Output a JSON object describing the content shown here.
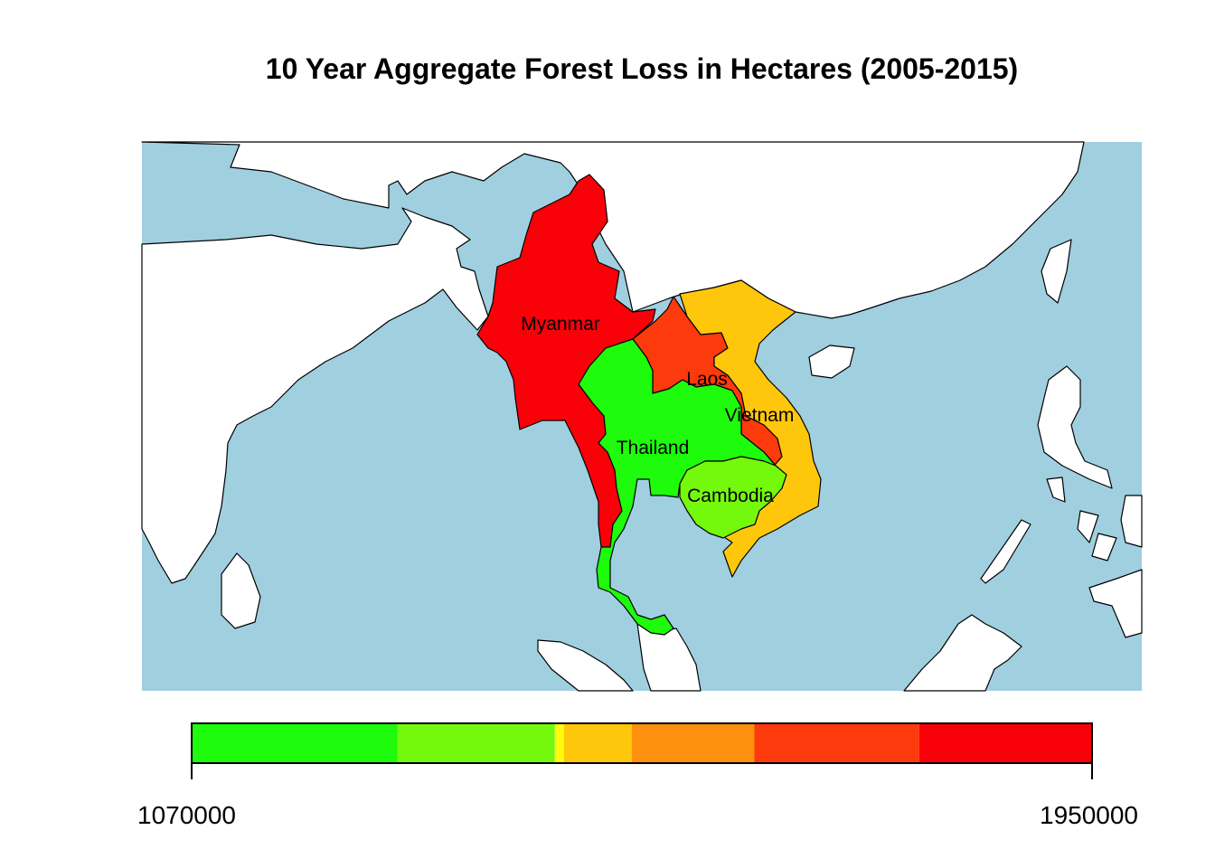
{
  "title": "10 Year Aggregate Forest Loss in Hectares (2005-2015)",
  "colors": {
    "sea": "#a0cfe0",
    "land": "#ffffff",
    "myanmar": "#fa0008",
    "laos": "#fd3a0c",
    "vietnam": "#fec70c",
    "thailand": "#1efb0c",
    "cambodia": "#74f90c"
  },
  "countries": [
    {
      "name": "Myanmar",
      "label": "Myanmar",
      "color_key": "myanmar"
    },
    {
      "name": "Laos",
      "label": "Laos",
      "color_key": "laos"
    },
    {
      "name": "Vietnam",
      "label": "Vietnam",
      "color_key": "vietnam"
    },
    {
      "name": "Thailand",
      "label": "Thailand",
      "color_key": "thailand"
    },
    {
      "name": "Cambodia",
      "label": "Cambodia",
      "color_key": "cambodia"
    }
  ],
  "legend": {
    "min_label": "1070000",
    "max_label": "1950000",
    "min": 1070000,
    "max": 1950000,
    "bins": [
      {
        "from": 1070000,
        "to": 1271000,
        "color": "#1efb0c"
      },
      {
        "from": 1271000,
        "to": 1425000,
        "color": "#74f90c"
      },
      {
        "from": 1425000,
        "to": 1434000,
        "color": "#fefb0c"
      },
      {
        "from": 1434000,
        "to": 1500000,
        "color": "#fec70c"
      },
      {
        "from": 1500000,
        "to": 1620000,
        "color": "#fd900c"
      },
      {
        "from": 1620000,
        "to": 1781000,
        "color": "#fd3a0c"
      },
      {
        "from": 1781000,
        "to": 1950000,
        "color": "#fa0008"
      }
    ]
  }
}
